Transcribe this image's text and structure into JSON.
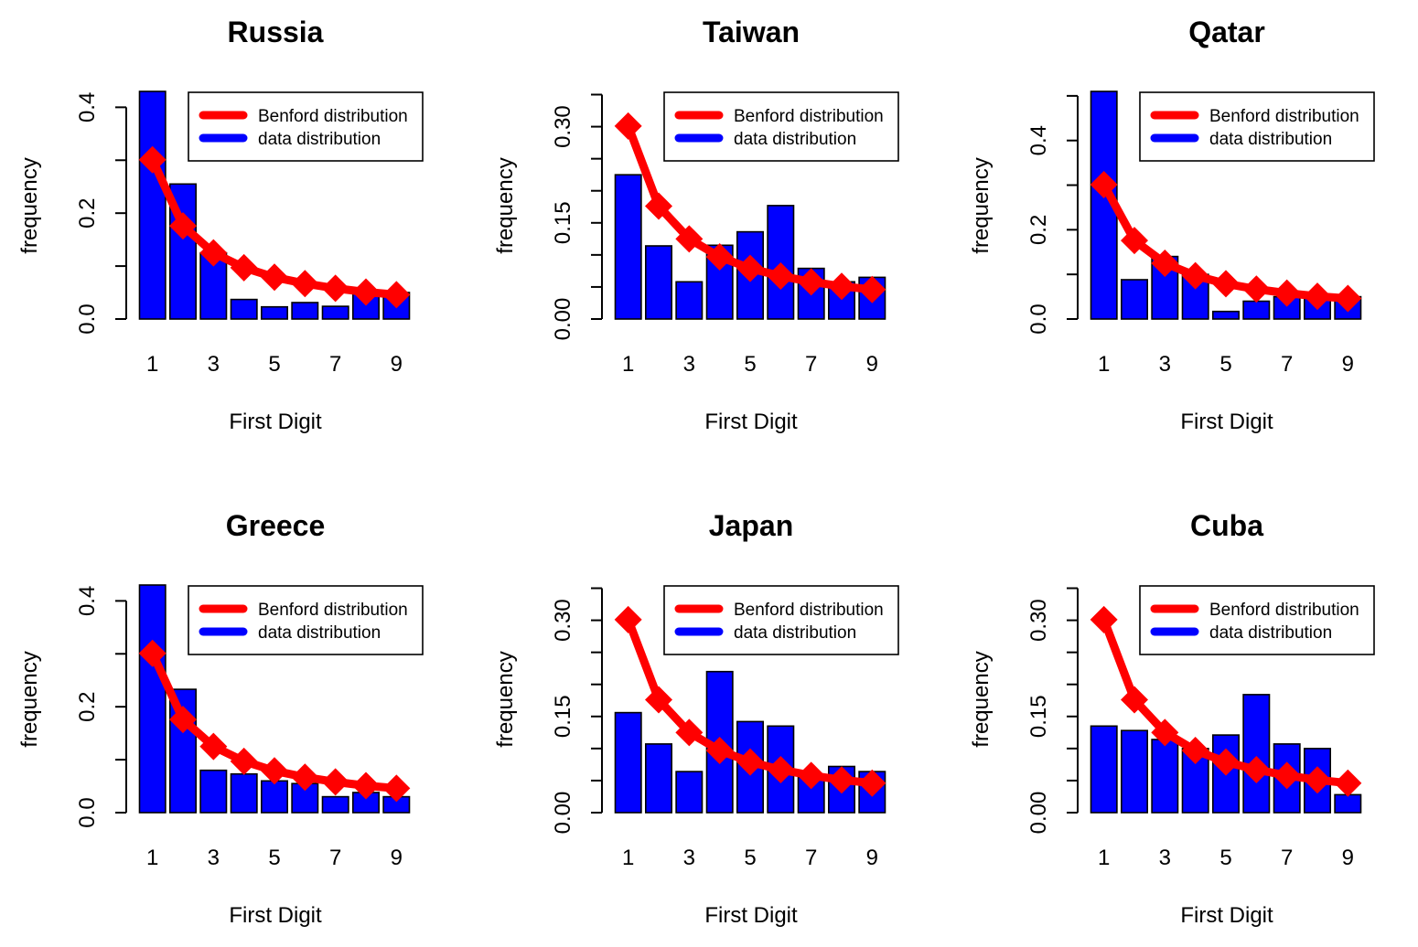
{
  "figure": {
    "colors": {
      "benford": "#ff0000",
      "data": "#0000ff",
      "axis": "#000000",
      "background": "#ffffff"
    },
    "legend_position": "top-right"
  },
  "chart_data": [
    {
      "type": "bar",
      "title": "Russia",
      "xlabel": "First Digit",
      "ylabel": "frequency",
      "categories": [
        "1",
        "2",
        "3",
        "4",
        "5",
        "6",
        "7",
        "8",
        "9"
      ],
      "x_tick_labels": [
        "1",
        "3",
        "5",
        "7",
        "9"
      ],
      "ylim": [
        0,
        0.43
      ],
      "yticks": [
        0,
        0.1,
        0.2,
        0.3,
        0.4
      ],
      "ytick_labels": [
        "0.0",
        "0.2",
        "0.4"
      ],
      "legend": [
        "Benford distribution",
        "data distribution"
      ],
      "series": [
        {
          "name": "data distribution",
          "kind": "bar",
          "values": [
            0.43,
            0.255,
            0.125,
            0.037,
            0.023,
            0.031,
            0.024,
            0.05,
            0.05
          ]
        },
        {
          "name": "Benford distribution",
          "kind": "line",
          "values": [
            0.301,
            0.176,
            0.125,
            0.097,
            0.079,
            0.067,
            0.058,
            0.051,
            0.046
          ]
        }
      ]
    },
    {
      "type": "bar",
      "title": "Taiwan",
      "xlabel": "First Digit",
      "ylabel": "frequency",
      "categories": [
        "1",
        "2",
        "3",
        "4",
        "5",
        "6",
        "7",
        "8",
        "9"
      ],
      "x_tick_labels": [
        "1",
        "3",
        "5",
        "7",
        "9"
      ],
      "ylim": [
        0,
        0.355
      ],
      "yticks": [
        0,
        0.05,
        0.1,
        0.15,
        0.2,
        0.25,
        0.3,
        0.35
      ],
      "ytick_labels": [
        "0.00",
        "0.15",
        "0.30"
      ],
      "legend": [
        "Benford distribution",
        "data distribution"
      ],
      "series": [
        {
          "name": "data distribution",
          "kind": "bar",
          "values": [
            0.225,
            0.114,
            0.058,
            0.115,
            0.136,
            0.177,
            0.079,
            0.058,
            0.065
          ]
        },
        {
          "name": "Benford distribution",
          "kind": "line",
          "values": [
            0.301,
            0.176,
            0.125,
            0.097,
            0.079,
            0.067,
            0.058,
            0.051,
            0.046
          ]
        }
      ]
    },
    {
      "type": "bar",
      "title": "Qatar",
      "xlabel": "First Digit",
      "ylabel": "frequency",
      "categories": [
        "1",
        "2",
        "3",
        "4",
        "5",
        "6",
        "7",
        "8",
        "9"
      ],
      "x_tick_labels": [
        "1",
        "3",
        "5",
        "7",
        "9"
      ],
      "ylim": [
        0,
        0.51
      ],
      "yticks": [
        0,
        0.1,
        0.2,
        0.3,
        0.4,
        0.5
      ],
      "ytick_labels": [
        "0.0",
        "0.2",
        "0.4"
      ],
      "legend": [
        "Benford distribution",
        "data distribution"
      ],
      "series": [
        {
          "name": "data distribution",
          "kind": "bar",
          "values": [
            0.51,
            0.088,
            0.14,
            0.1,
            0.017,
            0.04,
            0.05,
            0.05,
            0.05
          ]
        },
        {
          "name": "Benford distribution",
          "kind": "line",
          "values": [
            0.301,
            0.176,
            0.125,
            0.097,
            0.079,
            0.067,
            0.058,
            0.051,
            0.046
          ]
        }
      ]
    },
    {
      "type": "bar",
      "title": "Greece",
      "xlabel": "First Digit",
      "ylabel": "frequency",
      "categories": [
        "1",
        "2",
        "3",
        "4",
        "5",
        "6",
        "7",
        "8",
        "9"
      ],
      "x_tick_labels": [
        "1",
        "3",
        "5",
        "7",
        "9"
      ],
      "ylim": [
        0,
        0.43
      ],
      "yticks": [
        0,
        0.1,
        0.2,
        0.3,
        0.4
      ],
      "ytick_labels": [
        "0.0",
        "0.2",
        "0.4"
      ],
      "legend": [
        "Benford distribution",
        "data distribution"
      ],
      "series": [
        {
          "name": "data distribution",
          "kind": "bar",
          "values": [
            0.43,
            0.233,
            0.08,
            0.073,
            0.06,
            0.055,
            0.03,
            0.038,
            0.03
          ]
        },
        {
          "name": "Benford distribution",
          "kind": "line",
          "values": [
            0.301,
            0.176,
            0.125,
            0.097,
            0.079,
            0.067,
            0.058,
            0.051,
            0.046
          ]
        }
      ]
    },
    {
      "type": "bar",
      "title": "Japan",
      "xlabel": "First Digit",
      "ylabel": "frequency",
      "categories": [
        "1",
        "2",
        "3",
        "4",
        "5",
        "6",
        "7",
        "8",
        "9"
      ],
      "x_tick_labels": [
        "1",
        "3",
        "5",
        "7",
        "9"
      ],
      "ylim": [
        0,
        0.355
      ],
      "yticks": [
        0,
        0.05,
        0.1,
        0.15,
        0.2,
        0.25,
        0.3,
        0.35
      ],
      "ytick_labels": [
        "0.00",
        "0.15",
        "0.30"
      ],
      "legend": [
        "Benford distribution",
        "data distribution"
      ],
      "series": [
        {
          "name": "data distribution",
          "kind": "bar",
          "values": [
            0.156,
            0.107,
            0.064,
            0.22,
            0.142,
            0.135,
            0.055,
            0.072,
            0.064
          ]
        },
        {
          "name": "Benford distribution",
          "kind": "line",
          "values": [
            0.301,
            0.176,
            0.125,
            0.097,
            0.079,
            0.067,
            0.058,
            0.051,
            0.046
          ]
        }
      ]
    },
    {
      "type": "bar",
      "title": "Cuba",
      "xlabel": "First Digit",
      "ylabel": "frequency",
      "categories": [
        "1",
        "2",
        "3",
        "4",
        "5",
        "6",
        "7",
        "8",
        "9"
      ],
      "x_tick_labels": [
        "1",
        "3",
        "5",
        "7",
        "9"
      ],
      "ylim": [
        0,
        0.355
      ],
      "yticks": [
        0,
        0.05,
        0.1,
        0.15,
        0.2,
        0.25,
        0.3,
        0.35
      ],
      "ytick_labels": [
        "0.00",
        "0.15",
        "0.30"
      ],
      "legend": [
        "Benford distribution",
        "data distribution"
      ],
      "series": [
        {
          "name": "data distribution",
          "kind": "bar",
          "values": [
            0.135,
            0.128,
            0.114,
            0.1,
            0.121,
            0.184,
            0.107,
            0.1,
            0.028
          ]
        },
        {
          "name": "Benford distribution",
          "kind": "line",
          "values": [
            0.301,
            0.176,
            0.125,
            0.097,
            0.079,
            0.067,
            0.058,
            0.051,
            0.046
          ]
        }
      ]
    }
  ]
}
